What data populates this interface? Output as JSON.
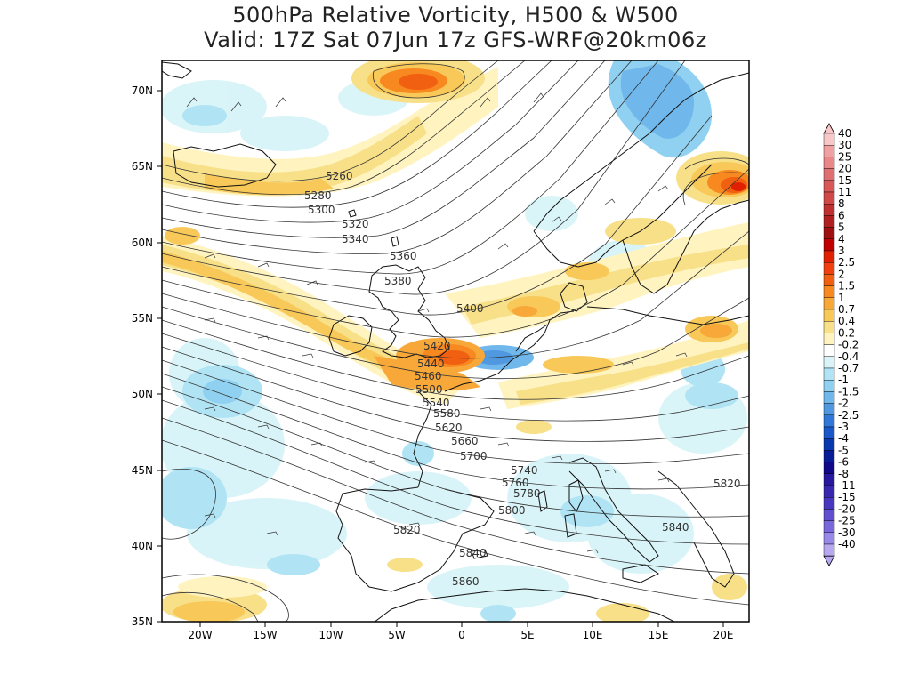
{
  "title_line1": "500hPa Relative Vorticity, H500 & W500",
  "title_line2": "Valid: 17Z Sat 07Jun 17z GFS-WRF@20km06z",
  "lat_labels": [
    "70N",
    "65N",
    "60N",
    "55N",
    "50N",
    "45N",
    "40N",
    "35N"
  ],
  "lon_labels": [
    "20W",
    "15W",
    "10W",
    "5W",
    "0",
    "5E",
    "10E",
    "15E",
    "20E"
  ],
  "contour_labels": [
    "5260",
    "5280",
    "5300",
    "5320",
    "5340",
    "5360",
    "5380",
    "5400",
    "5420",
    "5440",
    "5460",
    "5500",
    "5540",
    "5580",
    "5620",
    "5660",
    "5700",
    "5740",
    "5760",
    "5780",
    "5800",
    "5820",
    "5840",
    "5860",
    "5820",
    "5840"
  ],
  "legend": {
    "labels": [
      "40",
      "30",
      "25",
      "20",
      "15",
      "11",
      "8",
      "6",
      "5",
      "4",
      "3",
      "2.5",
      "2",
      "1.5",
      "1",
      "0.7",
      "0.4",
      "0.2",
      "-0.2",
      "-0.4",
      "-0.7",
      "-1",
      "-1.5",
      "-2",
      "-2.5",
      "-3",
      "-4",
      "-5",
      "-6",
      "-8",
      "-11",
      "-15",
      "-20",
      "-25",
      "-30",
      "-40"
    ],
    "colors": [
      "#f8c8c8",
      "#f0a0a0",
      "#e88888",
      "#e07070",
      "#d85858",
      "#d04848",
      "#c03030",
      "#b02020",
      "#a01010",
      "#c00000",
      "#e02000",
      "#f04010",
      "#f06010",
      "#f88820",
      "#f8a838",
      "#f8c858",
      "#f8e088",
      "#fff4c0",
      "#ffffff",
      "#d8f4f8",
      "#b0e4f4",
      "#90d0f0",
      "#70b8ec",
      "#5098e0",
      "#3078d8",
      "#1858c8",
      "#0838b0",
      "#081c98",
      "#100888",
      "#2818a0",
      "#3828b0",
      "#4838c0",
      "#6050d0",
      "#7868dc",
      "#9888e8",
      "#b8a8f0"
    ]
  }
}
